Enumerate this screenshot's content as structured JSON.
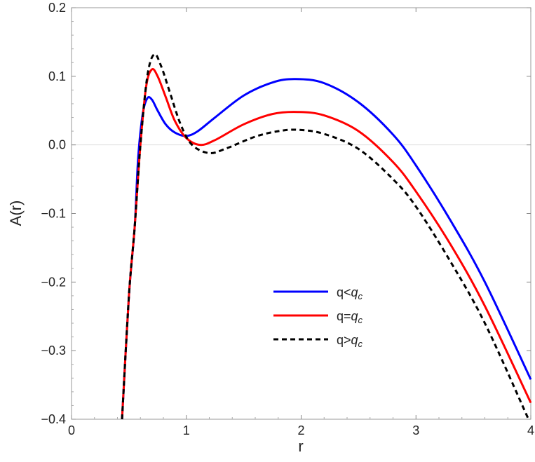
{
  "chart_data": {
    "type": "line",
    "title": "",
    "xlabel": "r",
    "ylabel": "A(r)",
    "xlim": [
      0,
      4
    ],
    "ylim": [
      -0.4,
      0.2
    ],
    "xticks": [
      "0",
      "1",
      "2",
      "3",
      "4"
    ],
    "yticks": [
      "−0.4",
      "−0.3",
      "−0.2",
      "−0.1",
      "0.0",
      "0.1",
      "0.2"
    ],
    "grid": false,
    "zero_line": true,
    "legend_position": "center-right",
    "series": [
      {
        "name": "q<q_c",
        "legend_prefix": "q<",
        "color": "#0000ff",
        "dash": "solid",
        "x": [
          0.44,
          0.5,
          0.55,
          0.58,
          0.62,
          0.66,
          0.7,
          0.75,
          0.82,
          0.9,
          1.0,
          1.1,
          1.25,
          1.5,
          1.75,
          1.95,
          2.2,
          2.5,
          2.8,
          3.0,
          3.3,
          3.6,
          4.0
        ],
        "y": [
          -0.4,
          -0.22,
          -0.12,
          -0.02,
          0.045,
          0.068,
          0.066,
          0.05,
          0.03,
          0.018,
          0.013,
          0.02,
          0.04,
          0.072,
          0.091,
          0.096,
          0.09,
          0.062,
          0.015,
          -0.03,
          -0.11,
          -0.2,
          -0.342
        ]
      },
      {
        "name": "q=q_c",
        "legend_prefix": "q=",
        "color": "#ff0000",
        "dash": "solid",
        "x": [
          0.44,
          0.5,
          0.55,
          0.6,
          0.65,
          0.7,
          0.75,
          0.82,
          0.9,
          1.0,
          1.12,
          1.25,
          1.5,
          1.75,
          1.97,
          2.2,
          2.5,
          2.8,
          3.0,
          3.3,
          3.6,
          4.0
        ],
        "y": [
          -0.4,
          -0.22,
          -0.12,
          0.0,
          0.085,
          0.11,
          0.1,
          0.07,
          0.035,
          0.01,
          0.0,
          0.007,
          0.03,
          0.045,
          0.048,
          0.043,
          0.02,
          -0.025,
          -0.068,
          -0.145,
          -0.235,
          -0.376
        ]
      },
      {
        "name": "q>q_c",
        "legend_prefix": "q>",
        "color": "#000000",
        "dash": "dashed",
        "x": [
          0.44,
          0.5,
          0.55,
          0.6,
          0.66,
          0.72,
          0.78,
          0.85,
          0.95,
          1.05,
          1.2,
          1.35,
          1.6,
          1.8,
          1.97,
          2.2,
          2.5,
          2.8,
          3.0,
          3.3,
          3.6,
          3.98
        ],
        "y": [
          -0.4,
          -0.22,
          -0.12,
          0.0,
          0.1,
          0.132,
          0.115,
          0.08,
          0.03,
          0.0,
          -0.012,
          -0.005,
          0.012,
          0.02,
          0.022,
          0.016,
          -0.006,
          -0.05,
          -0.09,
          -0.17,
          -0.26,
          -0.4
        ]
      }
    ],
    "legend_symbol": "q",
    "legend_subscript": "c"
  }
}
